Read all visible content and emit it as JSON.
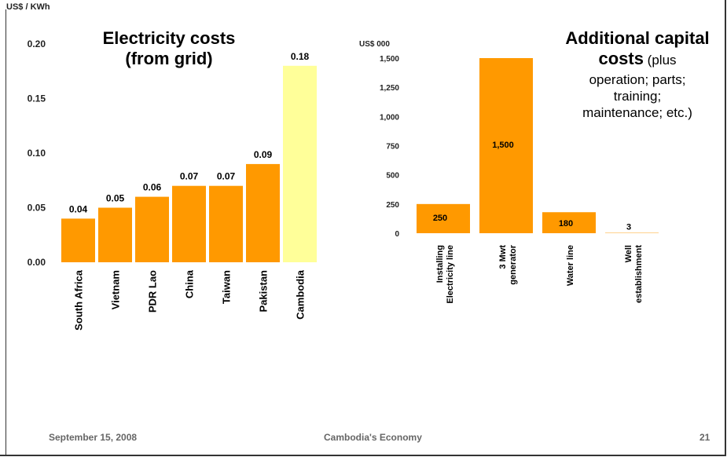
{
  "slide": {
    "footer_date": "September 15,  2008",
    "footer_title": "Cambodia's Economy",
    "page_number": "21"
  },
  "chart_data": [
    {
      "type": "bar",
      "title": "Electricity costs (from grid)",
      "title_line1": "Electricity costs",
      "title_line2": "(from grid)",
      "ylabel": "US$ / KWh",
      "ylim": [
        0,
        0.2
      ],
      "yticks": [
        "0.00",
        "0.05",
        "0.10",
        "0.15",
        "0.20"
      ],
      "categories": [
        "South Africa",
        "Vietnam",
        "PDR Lao",
        "China",
        "Taiwan",
        "Pakistan",
        "Cambodia"
      ],
      "values": [
        0.04,
        0.05,
        0.06,
        0.07,
        0.07,
        0.09,
        0.18
      ],
      "data_labels": [
        "0.04",
        "0.05",
        "0.06",
        "0.07",
        "0.07",
        "0.09",
        "0.18"
      ],
      "colors": [
        "#ff9900",
        "#ff9900",
        "#ff9900",
        "#ff9900",
        "#ff9900",
        "#ff9900",
        "#ffff99"
      ],
      "grid": false
    },
    {
      "type": "bar",
      "title": "Additional capital costs (plus operation; parts; training; maintenance; etc.)",
      "title_bold_line1": "Additional capital",
      "title_bold_line2": "costs",
      "title_rest_line2": " (plus",
      "title_line3": "operation; parts;",
      "title_line4": "training;",
      "title_line5": "maintenance; etc.)",
      "ylabel": "US$ 000",
      "ylim": [
        0,
        1500
      ],
      "yticks": [
        "0",
        "250",
        "500",
        "750",
        "1,000",
        "1,250",
        "1,500"
      ],
      "categories": [
        [
          "Installing",
          "Electricity line"
        ],
        [
          "3 Mwt",
          "generator"
        ],
        [
          "Water line"
        ],
        [
          "Well",
          "establishment"
        ]
      ],
      "values": [
        250,
        1500,
        180,
        3
      ],
      "data_labels": [
        "250",
        "1,500",
        "180",
        "3"
      ],
      "colors": [
        "#ff9900",
        "#ff9900",
        "#ff9900",
        "#ff9900"
      ],
      "grid": false
    }
  ]
}
